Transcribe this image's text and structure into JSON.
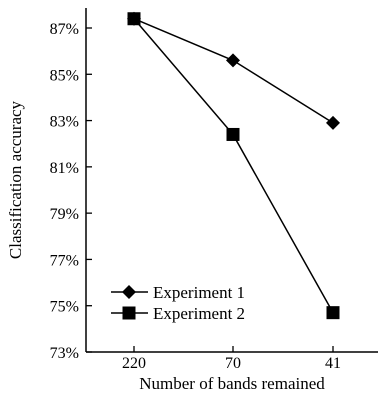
{
  "chart_data": {
    "type": "line",
    "title": "",
    "xlabel": "Number of bands remained",
    "ylabel": "Classification accuracy",
    "categories": [
      "220",
      "70",
      "41"
    ],
    "y_ticks": [
      "73%",
      "75%",
      "77%",
      "79%",
      "81%",
      "83%",
      "85%",
      "87%"
    ],
    "ylim": [
      73,
      88
    ],
    "grid": false,
    "legend_position": "bottom-left",
    "series": [
      {
        "name": "Experiment 1",
        "marker": "diamond",
        "values": [
          87.4,
          85.6,
          82.9
        ]
      },
      {
        "name": "Experiment 2",
        "marker": "square",
        "values": [
          87.4,
          82.4,
          74.7
        ]
      }
    ]
  }
}
